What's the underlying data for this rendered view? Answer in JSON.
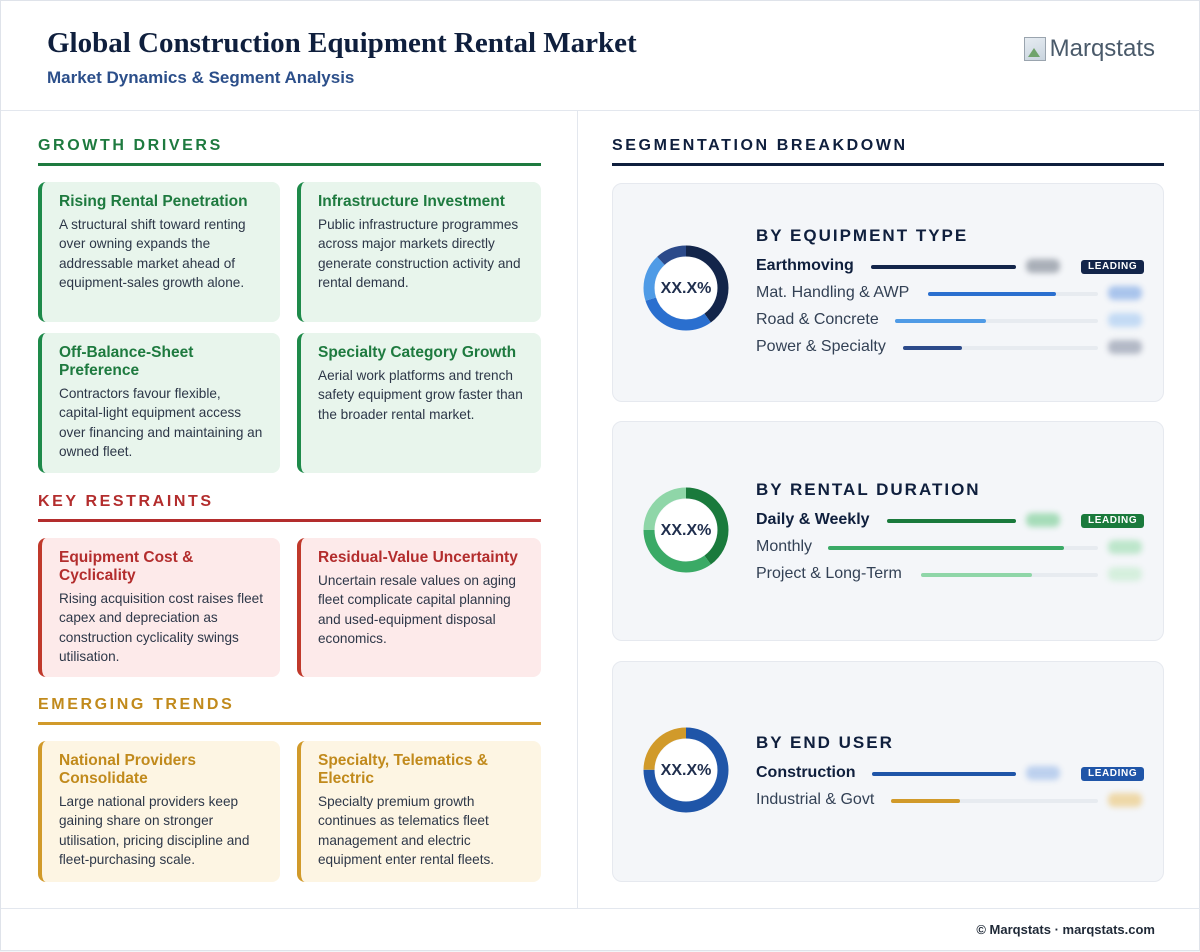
{
  "header": {
    "title": "Global Construction Equipment Rental Market",
    "subtitle": "Market Dynamics & Segment Analysis",
    "logo_text": "Marqstats"
  },
  "drivers": {
    "heading": "GROWTH DRIVERS",
    "cards": [
      {
        "title": "Rising Rental Penetration",
        "body": "A structural shift toward renting over owning expands the addressable market ahead of equipment-sales growth alone."
      },
      {
        "title": "Infrastructure Investment",
        "body": "Public infrastructure programmes across major markets directly generate construction activity and rental demand."
      },
      {
        "title": "Off-Balance-Sheet Preference",
        "body": "Contractors favour flexible, capital-light equipment access over financing and maintaining an owned fleet."
      },
      {
        "title": "Specialty Category Growth",
        "body": "Aerial work platforms and trench safety equipment grow faster than the broader rental market."
      }
    ]
  },
  "restraints": {
    "heading": "KEY RESTRAINTS",
    "cards": [
      {
        "title": "Equipment Cost & Cyclicality",
        "body": "Rising acquisition cost raises fleet capex and depreciation as construction cyclicality swings utilisation."
      },
      {
        "title": "Residual-Value Uncertainty",
        "body": "Uncertain resale values on aging fleet complicate capital planning and used-equipment disposal economics."
      }
    ]
  },
  "trends": {
    "heading": "EMERGING TRENDS",
    "cards": [
      {
        "title": "National Providers Consolidate",
        "body": "Large national providers keep gaining share on stronger utilisation, pricing discipline and fleet-purchasing scale."
      },
      {
        "title": "Specialty, Telematics & Electric",
        "body": "Specialty premium growth continues as telematics fleet management and electric equipment enter rental fleets."
      }
    ]
  },
  "segmentation": {
    "heading": "SEGMENTATION BREAKDOWN",
    "panels": [
      {
        "title": "BY EQUIPMENT TYPE",
        "donut_label": "XX.X%",
        "segments": [
          {
            "label": "Earthmoving",
            "share": 0.4,
            "color": "#13254a",
            "leading": true,
            "badge": "LEADING"
          },
          {
            "label": "Mat. Handling & AWP",
            "share": 0.3,
            "color": "#2a6fcf",
            "leading": false
          },
          {
            "label": "Road & Concrete",
            "share": 0.18,
            "color": "#4f9be6",
            "leading": false
          },
          {
            "label": "Power & Specialty",
            "share": 0.12,
            "color": "#2c4a8a",
            "leading": false
          }
        ]
      },
      {
        "title": "BY RENTAL DURATION",
        "donut_label": "XX.X%",
        "segments": [
          {
            "label": "Daily & Weekly",
            "share": 0.4,
            "color": "#1a7a3c",
            "leading": true,
            "badge": "LEADING"
          },
          {
            "label": "Monthly",
            "share": 0.35,
            "color": "#3aaa66",
            "leading": false
          },
          {
            "label": "Project & Long-Term",
            "share": 0.25,
            "color": "#8fd6a8",
            "leading": false
          }
        ]
      },
      {
        "title": "BY END USER",
        "donut_label": "XX.X%",
        "segments": [
          {
            "label": "Construction",
            "share": 0.75,
            "color": "#1f55a8",
            "leading": true,
            "badge": "LEADING"
          },
          {
            "label": "Industrial & Govt",
            "share": 0.25,
            "color": "#d19a2a",
            "leading": false
          }
        ]
      }
    ]
  },
  "footer": {
    "text": "© Marqstats · marqstats.com"
  }
}
